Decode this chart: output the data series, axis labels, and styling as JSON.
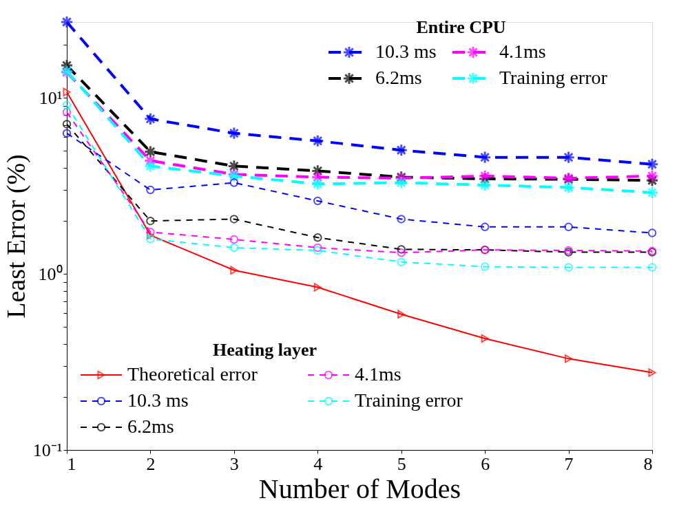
{
  "chart_data": {
    "type": "line",
    "xlabel": "Number of Modes",
    "ylabel": "Least Error (%)",
    "x": [
      1,
      2,
      3,
      4,
      5,
      6,
      7,
      8
    ],
    "xlim": [
      1,
      8
    ],
    "xticks": [
      1,
      2,
      3,
      4,
      5,
      6,
      7,
      8
    ],
    "ylim": [
      0.1,
      27
    ],
    "log": true,
    "grid": false,
    "yticks": [
      {
        "value": 0.1,
        "label": "10⁻¹"
      },
      {
        "value": 0.2,
        "label": null
      },
      {
        "value": 0.3,
        "label": null
      },
      {
        "value": 0.4,
        "label": null
      },
      {
        "value": 0.5,
        "label": null
      },
      {
        "value": 0.6,
        "label": null
      },
      {
        "value": 0.7,
        "label": null
      },
      {
        "value": 0.8,
        "label": null
      },
      {
        "value": 0.9,
        "label": null
      },
      {
        "value": 1,
        "label": "10⁰"
      },
      {
        "value": 2,
        "label": null
      },
      {
        "value": 3,
        "label": null
      },
      {
        "value": 4,
        "label": null
      },
      {
        "value": 5,
        "label": null
      },
      {
        "value": 6,
        "label": null
      },
      {
        "value": 7,
        "label": null
      },
      {
        "value": 8,
        "label": null
      },
      {
        "value": 9,
        "label": null
      },
      {
        "value": 10,
        "label": "10¹"
      },
      {
        "value": 20,
        "label": null
      }
    ],
    "legend": [
      "top right",
      "bottom left"
    ],
    "legend_title": [
      "Entire CPU",
      "Heating layer"
    ],
    "series": [
      {
        "name": "10.3 ms",
        "color": "#0000ff",
        "marker": "cross",
        "line_style": "dashed",
        "values": [
          27,
          7.6,
          6.3,
          5.7,
          5.05,
          4.6,
          4.6,
          4.2
        ]
      },
      {
        "name": "6.2ms",
        "color": "#000000",
        "marker": "cross",
        "line_style": "dashed",
        "values": [
          15.3,
          4.95,
          4.1,
          3.85,
          3.55,
          3.47,
          3.45,
          3.4
        ]
      },
      {
        "name": "4.1ms",
        "color": "#ff00ff",
        "marker": "cross",
        "line_style": "dashed",
        "values": [
          14,
          4.4,
          3.68,
          3.55,
          3.5,
          3.6,
          3.5,
          3.6
        ]
      },
      {
        "name": "Training error",
        "color": "#00ffff",
        "marker": "cross",
        "line_style": "dashed",
        "values": [
          14.2,
          4.1,
          3.6,
          3.25,
          3.3,
          3.2,
          3.1,
          2.9
        ]
      },
      {
        "name": "Theoretical error",
        "color": "#ff0000",
        "marker": "triangle",
        "line_style": "solid",
        "values": [
          10.8,
          1.66,
          1.05,
          0.84,
          0.59,
          0.43,
          0.33,
          0.275
        ]
      },
      {
        "name": "10.3 ms",
        "color": "#0000ff",
        "marker": "circle",
        "line_style": "dashed",
        "values": [
          6.3,
          3.0,
          3.3,
          2.6,
          2.05,
          1.85,
          1.85,
          1.71
        ]
      },
      {
        "name": "6.2ms",
        "color": "#000000",
        "marker": "circle",
        "line_style": "dashed",
        "values": [
          7.1,
          2.0,
          2.05,
          1.61,
          1.38,
          1.37,
          1.33,
          1.33
        ]
      },
      {
        "name": "4.1ms",
        "color": "#ff00ff",
        "marker": "circle",
        "line_style": "dashed",
        "values": [
          8.3,
          1.73,
          1.57,
          1.41,
          1.32,
          1.37,
          1.36,
          1.35
        ]
      },
      {
        "name": "Training error",
        "color": "#00ffff",
        "marker": "circle",
        "line_style": "dashed",
        "values": [
          9.1,
          1.58,
          1.41,
          1.36,
          1.17,
          1.1,
          1.09,
          1.09
        ]
      }
    ]
  }
}
